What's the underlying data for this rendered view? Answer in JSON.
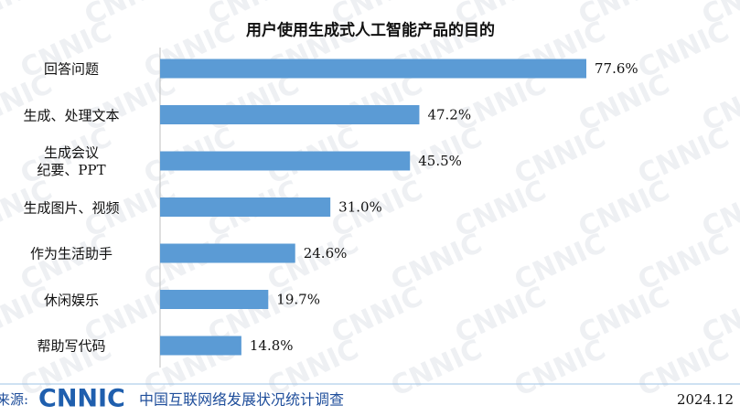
{
  "chart_data": {
    "type": "bar",
    "orientation": "horizontal",
    "title": "用户使用生成式人工智能产品的目的",
    "categories": [
      "回答问题",
      "生成、处理文本",
      "生成会议\n纪要、PPT",
      "生成图片、视频",
      "作为生活助手",
      "休闲娱乐",
      "帮助写代码"
    ],
    "values": [
      77.6,
      47.2,
      45.5,
      31.0,
      24.6,
      19.7,
      14.8
    ],
    "value_labels": [
      "77.6%",
      "47.2%",
      "45.5%",
      "31.0%",
      "24.6%",
      "19.7%",
      "14.8%"
    ],
    "color": "#5b9bd5"
  },
  "watermark": "CNNIC",
  "footer": {
    "source_label": "来源:",
    "logo": "CNNIC",
    "source": "中国互联网络发展状况统计调查",
    "date": "2024.12"
  }
}
